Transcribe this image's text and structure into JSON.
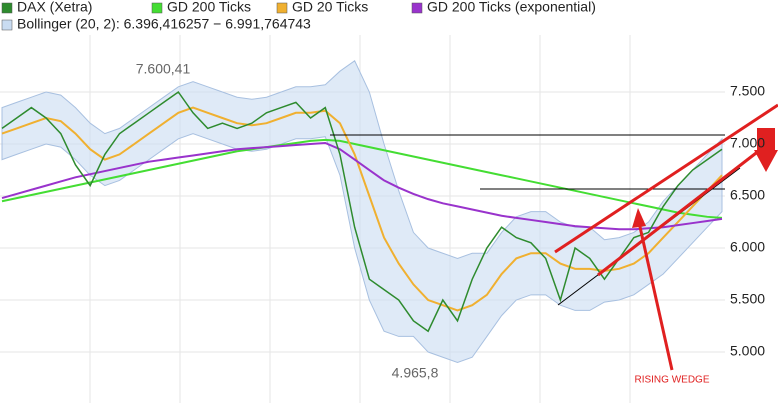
{
  "chart_data": {
    "type": "line",
    "ylim": [
      4510,
      8048
    ],
    "yticks": [
      {
        "value": 5000,
        "label": "5.000"
      },
      {
        "value": 5500,
        "label": "5.500"
      },
      {
        "value": 6000,
        "label": "6.000"
      },
      {
        "value": 6500,
        "label": "6.500"
      },
      {
        "value": 7000,
        "label": "7.000"
      },
      {
        "value": 7500,
        "label": "7.500"
      }
    ],
    "grid": true,
    "series": [
      {
        "name": "DAX (Xetra)",
        "color": "#2e8b2e",
        "values": [
          7150,
          7250,
          7350,
          7250,
          7100,
          6800,
          6600,
          6900,
          7100,
          7200,
          7300,
          7400,
          7500,
          7300,
          7150,
          7200,
          7150,
          7200,
          7300,
          7350,
          7400,
          7250,
          7350,
          6900,
          6200,
          5700,
          5600,
          5500,
          5300,
          5200,
          5500,
          5300,
          5700,
          6000,
          6200,
          6100,
          6050,
          5900,
          5500,
          6000,
          5900,
          5700,
          5900,
          6100,
          6150,
          6400,
          6600,
          6750,
          6850,
          6950
        ]
      },
      {
        "name": "GD 200 Ticks",
        "color": "#44dd33",
        "values": [
          6450,
          6480,
          6510,
          6540,
          6570,
          6600,
          6630,
          6660,
          6690,
          6720,
          6750,
          6780,
          6810,
          6840,
          6870,
          6900,
          6930,
          6950,
          6970,
          6990,
          7010,
          7030,
          7040,
          7030,
          7000,
          6970,
          6940,
          6910,
          6880,
          6850,
          6820,
          6790,
          6760,
          6730,
          6700,
          6670,
          6640,
          6610,
          6580,
          6550,
          6520,
          6490,
          6460,
          6430,
          6400,
          6370,
          6340,
          6320,
          6300,
          6290
        ]
      },
      {
        "name": "GD 20 Ticks",
        "color": "#f0b030",
        "values": [
          7100,
          7150,
          7200,
          7250,
          7220,
          7100,
          6950,
          6850,
          6900,
          7000,
          7100,
          7200,
          7300,
          7350,
          7300,
          7250,
          7200,
          7180,
          7200,
          7250,
          7300,
          7300,
          7320,
          7200,
          6900,
          6500,
          6100,
          5850,
          5650,
          5500,
          5450,
          5400,
          5450,
          5550,
          5750,
          5900,
          5950,
          5950,
          5850,
          5800,
          5800,
          5780,
          5800,
          5850,
          5950,
          6100,
          6250,
          6400,
          6550,
          6700
        ]
      },
      {
        "name": "GD 200 Ticks (exponential)",
        "color": "#9933cc",
        "values": [
          6480,
          6520,
          6560,
          6600,
          6640,
          6680,
          6710,
          6740,
          6770,
          6800,
          6830,
          6850,
          6870,
          6890,
          6910,
          6930,
          6950,
          6960,
          6970,
          6980,
          6990,
          7000,
          7010,
          6950,
          6850,
          6750,
          6650,
          6580,
          6520,
          6470,
          6430,
          6400,
          6370,
          6340,
          6310,
          6290,
          6270,
          6250,
          6230,
          6210,
          6200,
          6190,
          6180,
          6180,
          6190,
          6200,
          6220,
          6240,
          6260,
          6280
        ]
      }
    ],
    "band": {
      "name": "Bollinger (20, 2): 6.396,416257 − 6.991,764743",
      "color": "#c9dcf2",
      "upper": [
        7350,
        7400,
        7450,
        7500,
        7470,
        7350,
        7200,
        7100,
        7150,
        7250,
        7350,
        7450,
        7550,
        7600,
        7550,
        7500,
        7450,
        7430,
        7450,
        7500,
        7550,
        7550,
        7570,
        7700,
        7800,
        7500,
        7000,
        6550,
        6150,
        6000,
        5950,
        5900,
        5950,
        5950,
        6150,
        6300,
        6350,
        6350,
        6250,
        6200,
        6200,
        6080,
        6100,
        6150,
        6250,
        6450,
        6600,
        6750,
        6900,
        7050
      ],
      "lower": [
        6850,
        6900,
        6950,
        7000,
        6970,
        6850,
        6700,
        6600,
        6650,
        6750,
        6850,
        6950,
        7050,
        7100,
        7050,
        7000,
        6950,
        6930,
        6950,
        7000,
        7050,
        7050,
        7070,
        6700,
        6000,
        5500,
        5200,
        5150,
        5150,
        5000,
        4950,
        4900,
        4950,
        5150,
        5350,
        5500,
        5550,
        5550,
        5450,
        5400,
        5400,
        5480,
        5500,
        5550,
        5650,
        5750,
        5900,
        6050,
        6200,
        6350
      ]
    },
    "annotations": [
      "7.600,41",
      "4.965,8",
      "RISING WEDGE"
    ]
  }
}
